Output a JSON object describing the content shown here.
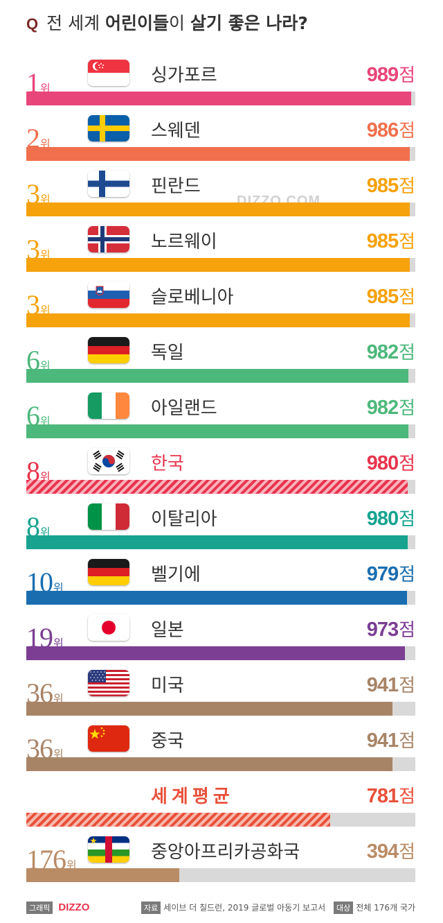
{
  "title": {
    "q": "Q",
    "prefix": "전 세계",
    "middle": "어린이들",
    "joiner": "이",
    "suffix": "살기 좋은 나라?"
  },
  "watermark": "DIZZO.COM",
  "rank_suffix": "위",
  "score_suffix": "점",
  "colors": {
    "singapore": "#e8457a",
    "sweden": "#f0704d",
    "yellow": "#f5a20c",
    "green": "#4db87b",
    "korea": "#e8344e",
    "teal": "#17a38f",
    "blue": "#1a6eb0",
    "purple": "#7b3e93",
    "brown": "#a88467",
    "average": "#e8503a",
    "track": "#d9d9d9"
  },
  "chart_data": {
    "type": "bar",
    "title": "전 세계 어린이들이 살기 좋은 나라?",
    "max_value": 1000,
    "rows": [
      {
        "rank": "1",
        "country": "싱가포르",
        "value": 989,
        "flag": "singapore-flag",
        "color": "#e8457a",
        "hatch": false
      },
      {
        "rank": "2",
        "country": "스웨덴",
        "value": 986,
        "flag": "sweden-flag",
        "color": "#f0704d",
        "hatch": false
      },
      {
        "rank": "3",
        "country": "핀란드",
        "value": 985,
        "flag": "finland-flag",
        "color": "#f5a20c",
        "hatch": false
      },
      {
        "rank": "3",
        "country": "노르웨이",
        "value": 985,
        "flag": "norway-flag",
        "color": "#f5a20c",
        "hatch": false
      },
      {
        "rank": "3",
        "country": "슬로베니아",
        "value": 985,
        "flag": "slovenia-flag",
        "color": "#f5a20c",
        "hatch": false
      },
      {
        "rank": "6",
        "country": "독일",
        "value": 982,
        "flag": "germany-flag",
        "color": "#4db87b",
        "hatch": false
      },
      {
        "rank": "6",
        "country": "아일랜드",
        "value": 982,
        "flag": "ireland-flag",
        "color": "#4db87b",
        "hatch": false
      },
      {
        "rank": "8",
        "country": "한국",
        "value": 980,
        "flag": "korea-flag",
        "color": "#e8344e",
        "hatch": true
      },
      {
        "rank": "8",
        "country": "이탈리아",
        "value": 980,
        "flag": "italy-flag",
        "color": "#17a38f",
        "hatch": false
      },
      {
        "rank": "10",
        "country": "벨기에",
        "value": 979,
        "flag": "belgium-flag",
        "color": "#1a6eb0",
        "hatch": false
      },
      {
        "rank": "19",
        "country": "일본",
        "value": 973,
        "flag": "japan-flag",
        "color": "#7b3e93",
        "hatch": false
      },
      {
        "rank": "36",
        "country": "미국",
        "value": 941,
        "flag": "usa-flag",
        "color": "#a88467",
        "hatch": false
      },
      {
        "rank": "36",
        "country": "중국",
        "value": 941,
        "flag": "china-flag",
        "color": "#a88467",
        "hatch": false
      },
      {
        "rank": "",
        "country": "세계평균",
        "value": 781,
        "flag": "",
        "color": "#e8503a",
        "hatch": true,
        "average": true
      },
      {
        "rank": "176",
        "country": "중앙아프리카공화국",
        "value": 394,
        "flag": "central-african-republic-flag",
        "color": "#b98c66",
        "hatch": false
      }
    ]
  },
  "footer": {
    "graphic_tag": "그래픽",
    "brand": "DIZZO",
    "source_tag": "자료",
    "source_text": "세이브 더 칠드런, 2019 글로벌 아동기 보고서",
    "target_tag": "대상",
    "target_text": "전체 176개 국가"
  }
}
